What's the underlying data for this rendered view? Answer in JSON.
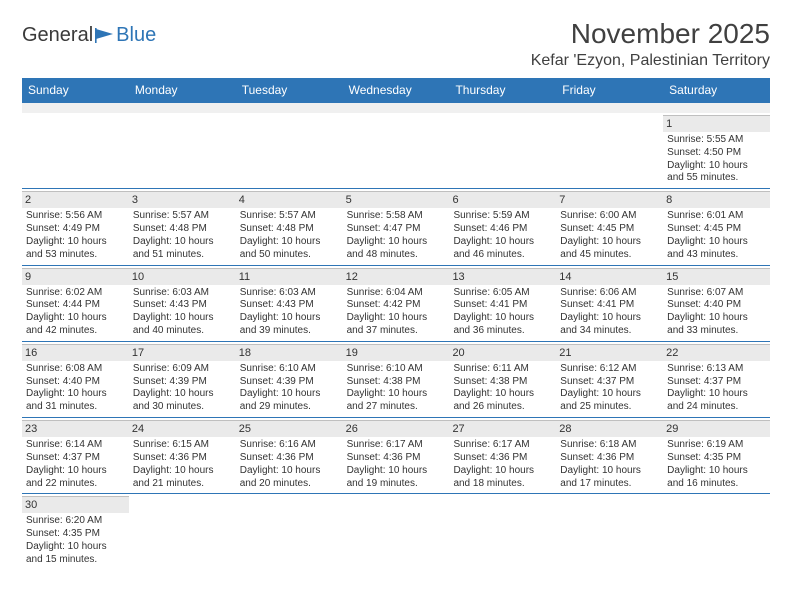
{
  "logo": {
    "part1": "General",
    "part2": "Blue"
  },
  "title": "November 2025",
  "location": "Kefar 'Ezyon, Palestinian Territory",
  "colors": {
    "header_bg": "#2e75b6",
    "header_text": "#ffffff",
    "daynum_bg": "#eaeaea",
    "text": "#333333",
    "rule": "#2e75b6"
  },
  "weekdays": [
    "Sunday",
    "Monday",
    "Tuesday",
    "Wednesday",
    "Thursday",
    "Friday",
    "Saturday"
  ],
  "weeks": [
    [
      null,
      null,
      null,
      null,
      null,
      null,
      {
        "n": "1",
        "sr": "Sunrise: 5:55 AM",
        "ss": "Sunset: 4:50 PM",
        "d1": "Daylight: 10 hours",
        "d2": "and 55 minutes."
      }
    ],
    [
      {
        "n": "2",
        "sr": "Sunrise: 5:56 AM",
        "ss": "Sunset: 4:49 PM",
        "d1": "Daylight: 10 hours",
        "d2": "and 53 minutes."
      },
      {
        "n": "3",
        "sr": "Sunrise: 5:57 AM",
        "ss": "Sunset: 4:48 PM",
        "d1": "Daylight: 10 hours",
        "d2": "and 51 minutes."
      },
      {
        "n": "4",
        "sr": "Sunrise: 5:57 AM",
        "ss": "Sunset: 4:48 PM",
        "d1": "Daylight: 10 hours",
        "d2": "and 50 minutes."
      },
      {
        "n": "5",
        "sr": "Sunrise: 5:58 AM",
        "ss": "Sunset: 4:47 PM",
        "d1": "Daylight: 10 hours",
        "d2": "and 48 minutes."
      },
      {
        "n": "6",
        "sr": "Sunrise: 5:59 AM",
        "ss": "Sunset: 4:46 PM",
        "d1": "Daylight: 10 hours",
        "d2": "and 46 minutes."
      },
      {
        "n": "7",
        "sr": "Sunrise: 6:00 AM",
        "ss": "Sunset: 4:45 PM",
        "d1": "Daylight: 10 hours",
        "d2": "and 45 minutes."
      },
      {
        "n": "8",
        "sr": "Sunrise: 6:01 AM",
        "ss": "Sunset: 4:45 PM",
        "d1": "Daylight: 10 hours",
        "d2": "and 43 minutes."
      }
    ],
    [
      {
        "n": "9",
        "sr": "Sunrise: 6:02 AM",
        "ss": "Sunset: 4:44 PM",
        "d1": "Daylight: 10 hours",
        "d2": "and 42 minutes."
      },
      {
        "n": "10",
        "sr": "Sunrise: 6:03 AM",
        "ss": "Sunset: 4:43 PM",
        "d1": "Daylight: 10 hours",
        "d2": "and 40 minutes."
      },
      {
        "n": "11",
        "sr": "Sunrise: 6:03 AM",
        "ss": "Sunset: 4:43 PM",
        "d1": "Daylight: 10 hours",
        "d2": "and 39 minutes."
      },
      {
        "n": "12",
        "sr": "Sunrise: 6:04 AM",
        "ss": "Sunset: 4:42 PM",
        "d1": "Daylight: 10 hours",
        "d2": "and 37 minutes."
      },
      {
        "n": "13",
        "sr": "Sunrise: 6:05 AM",
        "ss": "Sunset: 4:41 PM",
        "d1": "Daylight: 10 hours",
        "d2": "and 36 minutes."
      },
      {
        "n": "14",
        "sr": "Sunrise: 6:06 AM",
        "ss": "Sunset: 4:41 PM",
        "d1": "Daylight: 10 hours",
        "d2": "and 34 minutes."
      },
      {
        "n": "15",
        "sr": "Sunrise: 6:07 AM",
        "ss": "Sunset: 4:40 PM",
        "d1": "Daylight: 10 hours",
        "d2": "and 33 minutes."
      }
    ],
    [
      {
        "n": "16",
        "sr": "Sunrise: 6:08 AM",
        "ss": "Sunset: 4:40 PM",
        "d1": "Daylight: 10 hours",
        "d2": "and 31 minutes."
      },
      {
        "n": "17",
        "sr": "Sunrise: 6:09 AM",
        "ss": "Sunset: 4:39 PM",
        "d1": "Daylight: 10 hours",
        "d2": "and 30 minutes."
      },
      {
        "n": "18",
        "sr": "Sunrise: 6:10 AM",
        "ss": "Sunset: 4:39 PM",
        "d1": "Daylight: 10 hours",
        "d2": "and 29 minutes."
      },
      {
        "n": "19",
        "sr": "Sunrise: 6:10 AM",
        "ss": "Sunset: 4:38 PM",
        "d1": "Daylight: 10 hours",
        "d2": "and 27 minutes."
      },
      {
        "n": "20",
        "sr": "Sunrise: 6:11 AM",
        "ss": "Sunset: 4:38 PM",
        "d1": "Daylight: 10 hours",
        "d2": "and 26 minutes."
      },
      {
        "n": "21",
        "sr": "Sunrise: 6:12 AM",
        "ss": "Sunset: 4:37 PM",
        "d1": "Daylight: 10 hours",
        "d2": "and 25 minutes."
      },
      {
        "n": "22",
        "sr": "Sunrise: 6:13 AM",
        "ss": "Sunset: 4:37 PM",
        "d1": "Daylight: 10 hours",
        "d2": "and 24 minutes."
      }
    ],
    [
      {
        "n": "23",
        "sr": "Sunrise: 6:14 AM",
        "ss": "Sunset: 4:37 PM",
        "d1": "Daylight: 10 hours",
        "d2": "and 22 minutes."
      },
      {
        "n": "24",
        "sr": "Sunrise: 6:15 AM",
        "ss": "Sunset: 4:36 PM",
        "d1": "Daylight: 10 hours",
        "d2": "and 21 minutes."
      },
      {
        "n": "25",
        "sr": "Sunrise: 6:16 AM",
        "ss": "Sunset: 4:36 PM",
        "d1": "Daylight: 10 hours",
        "d2": "and 20 minutes."
      },
      {
        "n": "26",
        "sr": "Sunrise: 6:17 AM",
        "ss": "Sunset: 4:36 PM",
        "d1": "Daylight: 10 hours",
        "d2": "and 19 minutes."
      },
      {
        "n": "27",
        "sr": "Sunrise: 6:17 AM",
        "ss": "Sunset: 4:36 PM",
        "d1": "Daylight: 10 hours",
        "d2": "and 18 minutes."
      },
      {
        "n": "28",
        "sr": "Sunrise: 6:18 AM",
        "ss": "Sunset: 4:36 PM",
        "d1": "Daylight: 10 hours",
        "d2": "and 17 minutes."
      },
      {
        "n": "29",
        "sr": "Sunrise: 6:19 AM",
        "ss": "Sunset: 4:35 PM",
        "d1": "Daylight: 10 hours",
        "d2": "and 16 minutes."
      }
    ],
    [
      {
        "n": "30",
        "sr": "Sunrise: 6:20 AM",
        "ss": "Sunset: 4:35 PM",
        "d1": "Daylight: 10 hours",
        "d2": "and 15 minutes."
      },
      null,
      null,
      null,
      null,
      null,
      null
    ]
  ]
}
